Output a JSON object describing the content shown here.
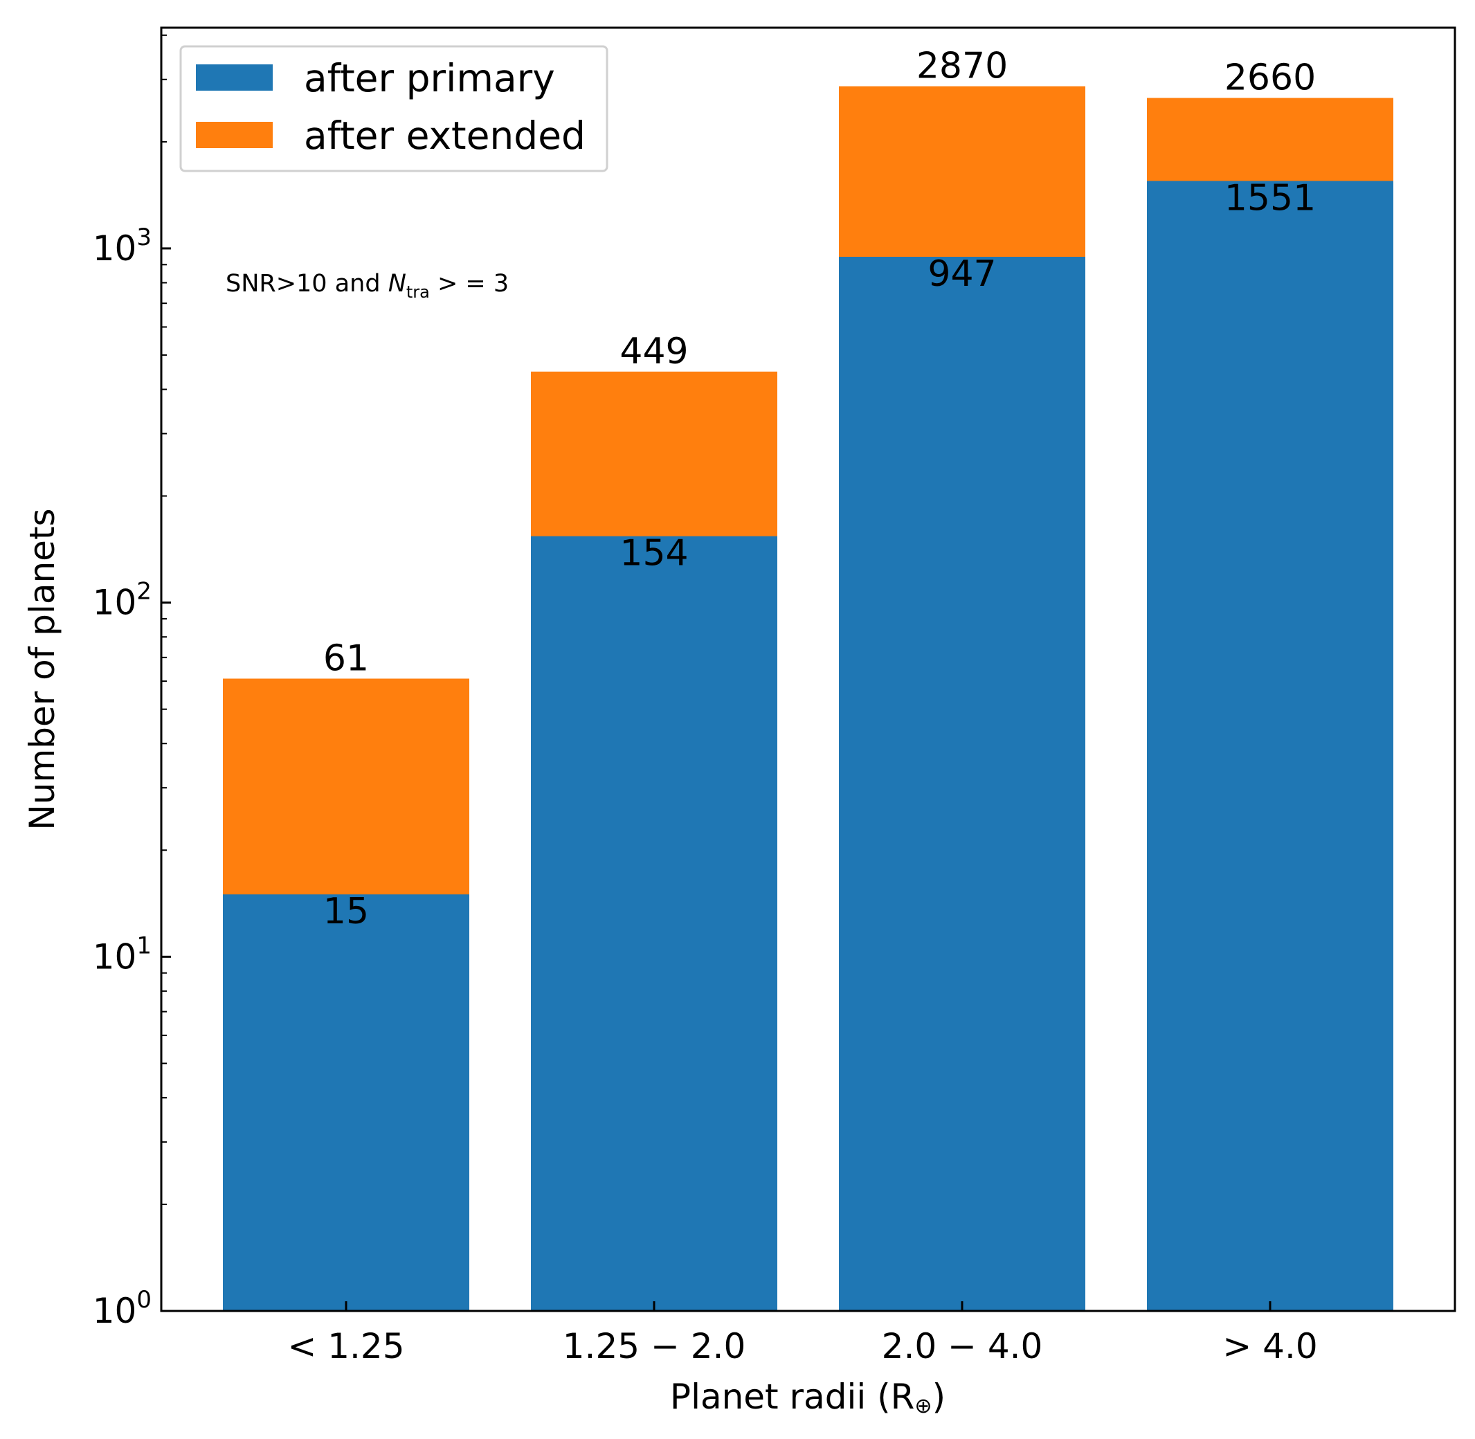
{
  "chart_data": {
    "type": "bar",
    "stacked": true,
    "categories": [
      "< 1.25",
      "1.25 − 2.0",
      "2.0 − 4.0",
      "> 4.0"
    ],
    "series": [
      {
        "name": "after primary",
        "color": "#1f77b4",
        "values": [
          15,
          154,
          947,
          1551
        ]
      },
      {
        "name": "after extended",
        "color": "#ff7f0e",
        "values": [
          61,
          449,
          2870,
          2660
        ]
      }
    ],
    "top_labels": [
      "61",
      "449",
      "2870",
      "2660"
    ],
    "inner_labels": [
      "15",
      "154",
      "947",
      "1551"
    ],
    "xlabel": "Planet radii (R",
    "xlabel_symbol": "⊕",
    "xlabel_close": ")",
    "ylabel": "Number of planets",
    "yscale": "log",
    "ylim": [
      1,
      4200
    ],
    "yticks": [
      {
        "base": "10",
        "exp": "0"
      },
      {
        "base": "10",
        "exp": "1"
      },
      {
        "base": "10",
        "exp": "2"
      },
      {
        "base": "10",
        "exp": "3"
      }
    ],
    "annotation": {
      "prefix": "SNR>10 and ",
      "var": "N",
      "sub": "tra",
      "suffix": " > = 3"
    },
    "legend_position": "top-left",
    "grid": false
  }
}
